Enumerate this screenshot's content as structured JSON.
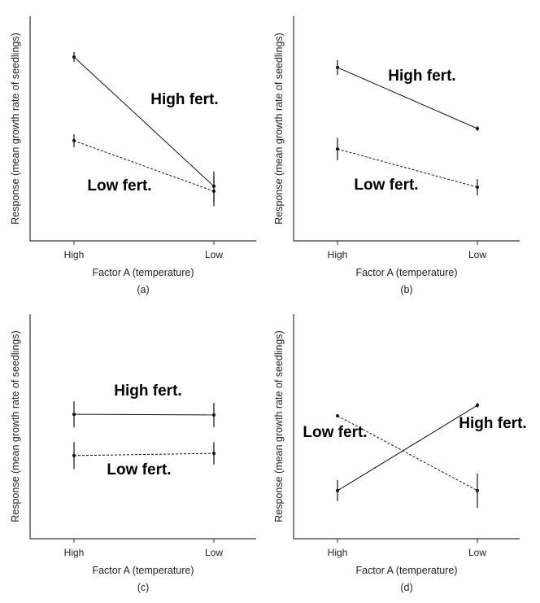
{
  "chart_data": [
    {
      "type": "line",
      "caption": "(a)",
      "xlabel": "Factor A (temperature)",
      "ylabel": "Response (mean growth rate of seedlings)",
      "categories": [
        "High",
        "Low"
      ],
      "ylim": [
        0,
        10
      ],
      "grid": false,
      "series": [
        {
          "name": "High fert.",
          "style": "solid",
          "values": [
            8.19,
            2.43
          ],
          "errors": [
            0.22,
            0.67
          ]
        },
        {
          "name": "Low fert.",
          "style": "dashed",
          "values": [
            4.46,
            2.21
          ],
          "errors": [
            0.29,
            0.67
          ]
        }
      ]
    },
    {
      "type": "line",
      "caption": "(b)",
      "xlabel": "Factor A (temperature)",
      "ylabel": "Response (mean growth rate of seedlings)",
      "categories": [
        "High",
        "Low"
      ],
      "ylim": [
        0,
        10
      ],
      "grid": false,
      "series": [
        {
          "name": "High fert.",
          "style": "solid",
          "values": [
            7.72,
            5.0
          ],
          "errors": [
            0.33,
            0.1
          ]
        },
        {
          "name": "Low fert.",
          "style": "dashed",
          "values": [
            4.09,
            2.39
          ],
          "errors": [
            0.5,
            0.36
          ]
        }
      ]
    },
    {
      "type": "line",
      "caption": "(c)",
      "xlabel": "Factor A (temperature)",
      "ylabel": "Response (mean growth rate of seedlings)",
      "categories": [
        "High",
        "Low"
      ],
      "ylim": [
        0,
        10
      ],
      "grid": false,
      "series": [
        {
          "name": "High fert.",
          "style": "solid",
          "values": [
            5.54,
            5.51
          ],
          "errors": [
            0.58,
            0.54
          ]
        },
        {
          "name": "Low fert.",
          "style": "dashed",
          "values": [
            3.7,
            3.8
          ],
          "errors": [
            0.6,
            0.5
          ]
        }
      ]
    },
    {
      "type": "line",
      "caption": "(d)",
      "xlabel": "Factor A (temperature)",
      "ylabel": "Response (mean growth rate of seedlings)",
      "categories": [
        "High",
        "Low"
      ],
      "ylim": [
        0,
        10
      ],
      "grid": false,
      "series": [
        {
          "name": "High fert.",
          "style": "solid",
          "values": [
            2.14,
            5.94
          ],
          "errors": [
            0.47,
            0.1
          ]
        },
        {
          "name": "Low fert.",
          "style": "dashed",
          "values": [
            5.47,
            2.14
          ],
          "errors": [
            0.03,
            0.76
          ]
        }
      ]
    }
  ],
  "colors": {
    "line": "#111111",
    "axis": "#333333"
  }
}
